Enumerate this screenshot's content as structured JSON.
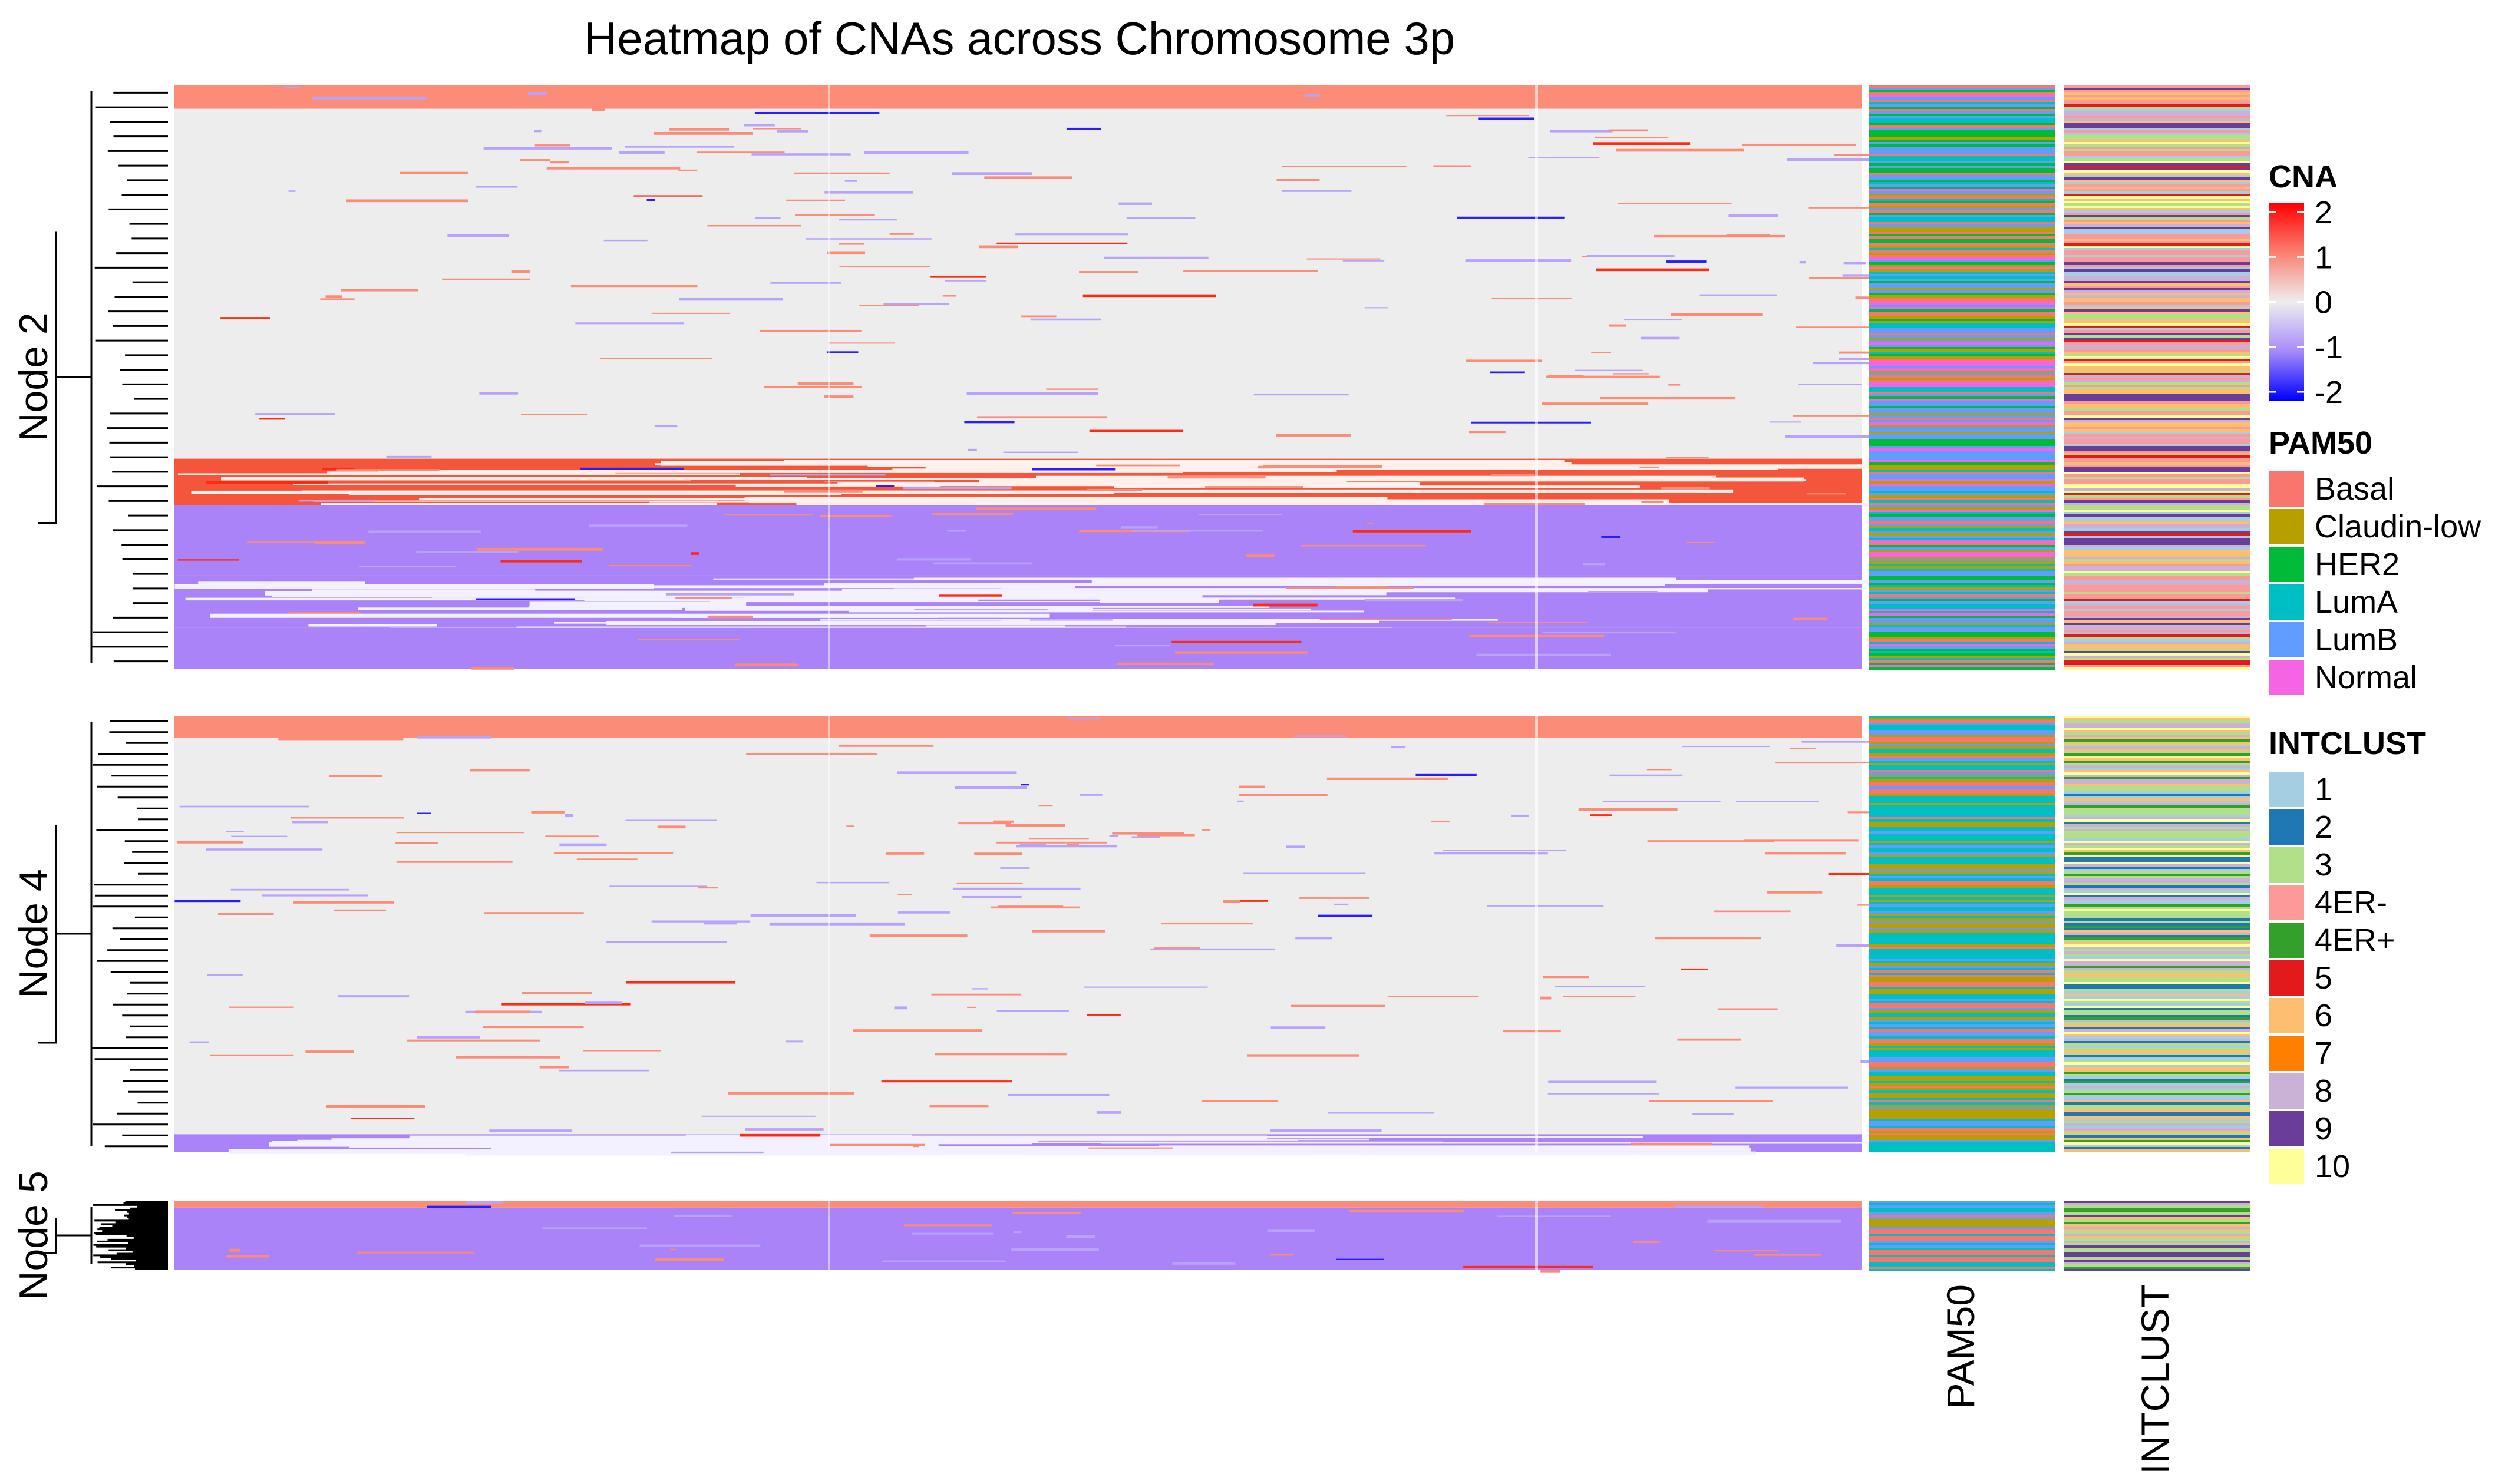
{
  "chart_data": {
    "type": "heatmap",
    "title": "Heatmap of CNAs across Chromosome 3p",
    "row_groups": [
      {
        "name": "Node 2",
        "approx_rows": 720,
        "pattern": "mixed",
        "bands": [
          {
            "from": 0.0,
            "to": 0.04,
            "state": "gain"
          },
          {
            "from": 0.04,
            "to": 0.64,
            "state": "neutral"
          },
          {
            "from": 0.64,
            "to": 0.72,
            "state": "high-gain"
          },
          {
            "from": 0.72,
            "to": 0.84,
            "state": "loss"
          },
          {
            "from": 0.84,
            "to": 0.93,
            "state": "mixed-loss"
          },
          {
            "from": 0.93,
            "to": 1.0,
            "state": "loss"
          }
        ]
      },
      {
        "name": "Node 4",
        "approx_rows": 560,
        "pattern": "mostly-neutral",
        "bands": [
          {
            "from": 0.0,
            "to": 0.05,
            "state": "gain"
          },
          {
            "from": 0.05,
            "to": 0.96,
            "state": "neutral"
          },
          {
            "from": 0.96,
            "to": 1.0,
            "state": "mixed-loss"
          }
        ]
      },
      {
        "name": "Node 5",
        "approx_rows": 90,
        "pattern": "loss",
        "bands": [
          {
            "from": 0.0,
            "to": 0.1,
            "state": "gain"
          },
          {
            "from": 0.1,
            "to": 1.0,
            "state": "loss"
          }
        ]
      }
    ],
    "value_scale": {
      "title": "CNA",
      "ticks": [
        2,
        1,
        0,
        -1,
        -2
      ],
      "colors": {
        "high": "#ff0000",
        "mid_high": "#fa8072",
        "zero": "#eeeeee",
        "mid_low": "#a78bfa",
        "low": "#0000ff"
      },
      "state_colors": {
        "neutral": "#ededed",
        "gain": "#fa8c78",
        "high-gain": "#f5553a",
        "loss": "#a983f7",
        "mixed-loss": "#a983f7"
      }
    },
    "annotations": [
      {
        "title": "PAM50",
        "column_label": "PAM50",
        "legend": [
          {
            "label": "Basal",
            "color": "#f8766d"
          },
          {
            "label": "Claudin-low",
            "color": "#b79f00"
          },
          {
            "label": "HER2",
            "color": "#00ba38"
          },
          {
            "label": "LumA",
            "color": "#00bfc4"
          },
          {
            "label": "LumB",
            "color": "#619cff"
          },
          {
            "label": "Normal",
            "color": "#f564e3"
          }
        ]
      },
      {
        "title": "INTCLUST",
        "column_label": "INTCLUST",
        "legend": [
          {
            "label": "1",
            "color": "#a6cee3"
          },
          {
            "label": "2",
            "color": "#1f78b4"
          },
          {
            "label": "3",
            "color": "#b2df8a"
          },
          {
            "label": "4ER-",
            "color": "#fb9a99"
          },
          {
            "label": "4ER+",
            "color": "#33a02c"
          },
          {
            "label": "5",
            "color": "#e31a1c"
          },
          {
            "label": "6",
            "color": "#fdbf6f"
          },
          {
            "label": "7",
            "color": "#ff7f00"
          },
          {
            "label": "8",
            "color": "#cab2d6"
          },
          {
            "label": "9",
            "color": "#6a3d9a"
          },
          {
            "label": "10",
            "color": "#ffff99"
          }
        ]
      }
    ],
    "group_annotation_mix": {
      "Node 2": {
        "PAM50": [
          "LumB",
          "LumA",
          "Basal",
          "HER2",
          "Normal",
          "Claudin-low"
        ],
        "INTCLUST": [
          "4ER-",
          "9",
          "6",
          "8",
          "3",
          "1",
          "10",
          "5"
        ]
      },
      "Node 4": {
        "PAM50": [
          "LumA",
          "Claudin-low",
          "LumB",
          "Basal"
        ],
        "INTCLUST": [
          "3",
          "8",
          "6",
          "4ER+",
          "1",
          "10",
          "2"
        ]
      },
      "Node 5": {
        "PAM50": [
          "LumA",
          "Claudin-low",
          "LumB",
          "Basal"
        ],
        "INTCLUST": [
          "3",
          "6",
          "8",
          "4ER+",
          "9"
        ]
      }
    }
  }
}
